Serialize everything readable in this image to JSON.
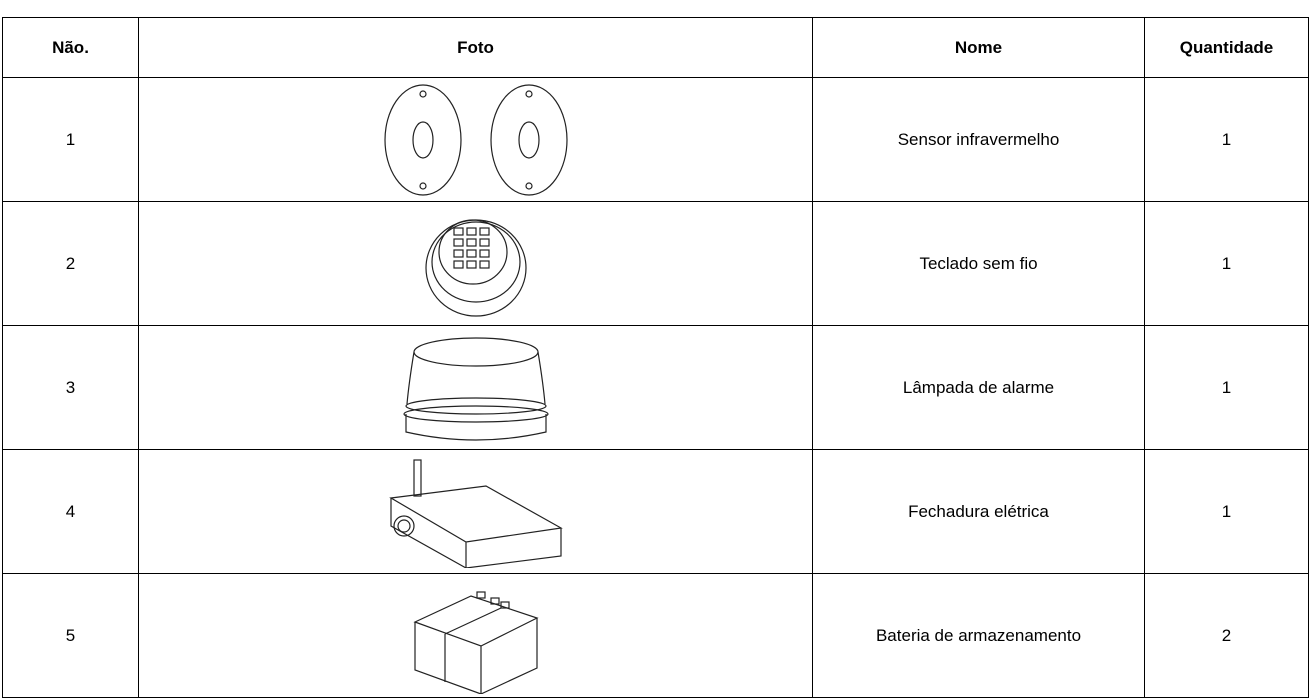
{
  "table": {
    "header": [
      "Não.",
      "Foto",
      "Nome",
      "Quantidade"
    ],
    "rows": [
      [
        "1",
        "Sensor infravermelho",
        "1"
      ],
      [
        "2",
        "Teclado sem fio",
        "1"
      ],
      [
        "3",
        "Lâmpada de alarme",
        "1"
      ],
      [
        "4",
        "Fechadura elétrica",
        "1"
      ],
      [
        "5",
        "Bateria de armazenamento",
        "2"
      ]
    ]
  }
}
